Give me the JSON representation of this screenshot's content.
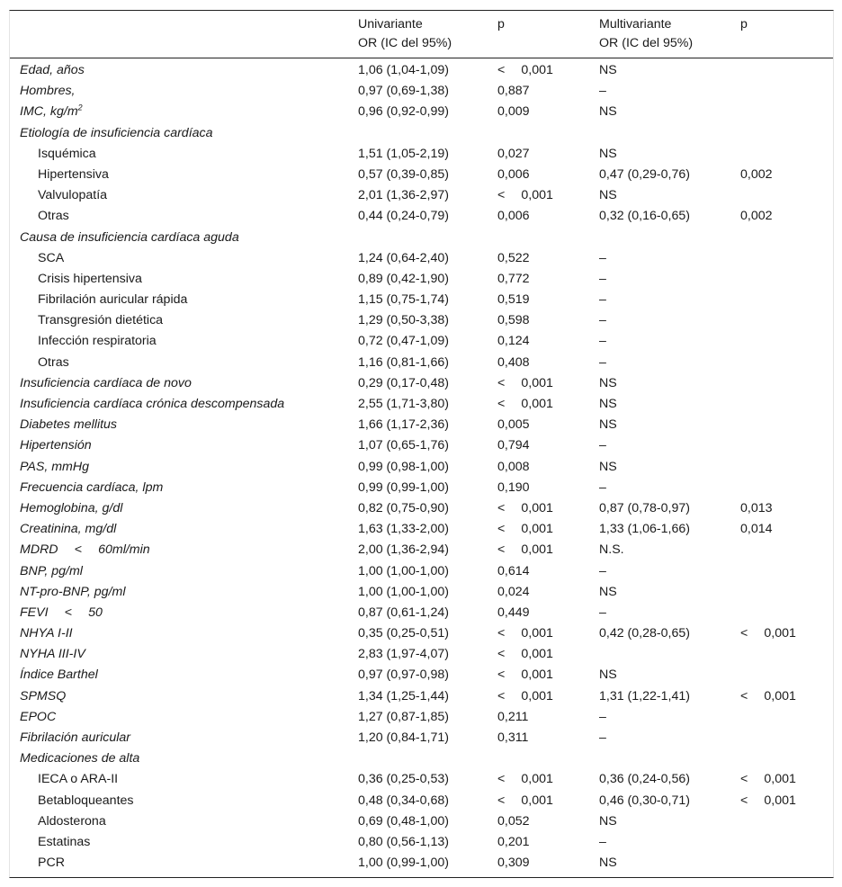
{
  "header": {
    "univ_line1": "Univariante",
    "univ_line2": "OR (IC del 95%)",
    "p1": "p",
    "multi_line1": "Multivariante",
    "multi_line2": "OR (IC del 95%)",
    "p2": "p"
  },
  "rows": [
    {
      "label": "Edad, años",
      "italic": true,
      "indent": false,
      "univ": "1,06 (1,04-1,09)",
      "p": "<  0,001",
      "multi": "NS",
      "p2": ""
    },
    {
      "label": "Hombres,",
      "italic": true,
      "indent": false,
      "univ": "0,97 (0,69-1,38)",
      "p": "0,887",
      "multi": "–",
      "p2": ""
    },
    {
      "label": "IMC, kg/m",
      "sup": "2",
      "italic": true,
      "indent": false,
      "univ": "0,96 (0,92-0,99)",
      "p": "0,009",
      "multi": "NS",
      "p2": ""
    },
    {
      "label": "Etiología de insuficiencia cardíaca",
      "italic": true,
      "indent": false,
      "univ": "",
      "p": "",
      "multi": "",
      "p2": ""
    },
    {
      "label": "Isquémica",
      "italic": false,
      "indent": true,
      "univ": "1,51 (1,05-2,19)",
      "p": "0,027",
      "multi": "NS",
      "p2": ""
    },
    {
      "label": "Hipertensiva",
      "italic": false,
      "indent": true,
      "univ": "0,57 (0,39-0,85)",
      "p": "0,006",
      "multi": "0,47 (0,29-0,76)",
      "p2": "0,002"
    },
    {
      "label": "Valvulopatía",
      "italic": false,
      "indent": true,
      "univ": "2,01 (1,36-2,97)",
      "p": "<  0,001",
      "multi": "NS",
      "p2": ""
    },
    {
      "label": "Otras",
      "italic": false,
      "indent": true,
      "univ": "0,44 (0,24-0,79)",
      "p": "0,006",
      "multi": "0,32 (0,16-0,65)",
      "p2": "0,002"
    },
    {
      "label": "Causa de insuficiencia cardíaca aguda",
      "italic": true,
      "indent": false,
      "univ": "",
      "p": "",
      "multi": "",
      "p2": ""
    },
    {
      "label": "SCA",
      "italic": false,
      "indent": true,
      "univ": "1,24 (0,64-2,40)",
      "p": "0,522",
      "multi": "–",
      "p2": ""
    },
    {
      "label": "Crisis hipertensiva",
      "italic": false,
      "indent": true,
      "univ": "0,89 (0,42-1,90)",
      "p": "0,772",
      "multi": "–",
      "p2": ""
    },
    {
      "label": "Fibrilación auricular rápida",
      "italic": false,
      "indent": true,
      "univ": "1,15 (0,75-1,74)",
      "p": "0,519",
      "multi": "–",
      "p2": ""
    },
    {
      "label": "Transgresión dietética",
      "italic": false,
      "indent": true,
      "univ": "1,29 (0,50-3,38)",
      "p": "0,598",
      "multi": "–",
      "p2": ""
    },
    {
      "label": "Infección respiratoria",
      "italic": false,
      "indent": true,
      "univ": "0,72 (0,47-1,09)",
      "p": "0,124",
      "multi": "–",
      "p2": ""
    },
    {
      "label": "Otras",
      "italic": false,
      "indent": true,
      "univ": "1,16 (0,81-1,66)",
      "p": "0,408",
      "multi": "–",
      "p2": ""
    },
    {
      "label": "Insuficiencia cardíaca de novo",
      "italic": true,
      "indent": false,
      "univ": "0,29 (0,17-0,48)",
      "p": "<  0,001",
      "multi": "NS",
      "p2": ""
    },
    {
      "label": "Insuficiencia cardíaca crónica descompensada",
      "italic": true,
      "indent": false,
      "univ": "2,55 (1,71-3,80)",
      "p": "<  0,001",
      "multi": "NS",
      "p2": ""
    },
    {
      "label": "Diabetes mellitus",
      "italic": true,
      "indent": false,
      "univ": "1,66 (1,17-2,36)",
      "p": "0,005",
      "multi": "NS",
      "p2": ""
    },
    {
      "label": "Hipertensión",
      "italic": true,
      "indent": false,
      "univ": "1,07 (0,65-1,76)",
      "p": "0,794",
      "multi": "–",
      "p2": ""
    },
    {
      "label": "PAS, mmHg",
      "italic": true,
      "indent": false,
      "univ": "0,99 (0,98-1,00)",
      "p": "0,008",
      "multi": "NS",
      "p2": ""
    },
    {
      "label": "Frecuencia cardíaca, lpm",
      "italic": true,
      "indent": false,
      "univ": "0,99 (0,99-1,00)",
      "p": "0,190",
      "multi": "–",
      "p2": ""
    },
    {
      "label": "Hemoglobina, g/dl",
      "italic": true,
      "indent": false,
      "univ": "0,82 (0,75-0,90)",
      "p": "<  0,001",
      "multi": "0,87 (0,78-0,97)",
      "p2": "0,013"
    },
    {
      "label": "Creatinina, mg/dl",
      "italic": true,
      "indent": false,
      "univ": "1,63 (1,33-2,00)",
      "p": "<  0,001",
      "multi": "1,33 (1,06-1,66)",
      "p2": "0,014"
    },
    {
      "label": "MDRD  <  60ml/min",
      "italic": true,
      "indent": false,
      "univ": "2,00 (1,36-2,94)",
      "p": "<  0,001",
      "multi": "N.S.",
      "p2": ""
    },
    {
      "label": "BNP, pg/ml",
      "italic": true,
      "indent": false,
      "univ": "1,00 (1,00-1,00)",
      "p": "0,614",
      "multi": "–",
      "p2": ""
    },
    {
      "label": "NT-pro-BNP, pg/ml",
      "italic": true,
      "indent": false,
      "univ": "1,00 (1,00-1,00)",
      "p": "0,024",
      "multi": "NS",
      "p2": ""
    },
    {
      "label": "FEVI  <  50",
      "italic": true,
      "indent": false,
      "univ": "0,87 (0,61-1,24)",
      "p": "0,449",
      "multi": "–",
      "p2": ""
    },
    {
      "label": "NHYA I-II",
      "italic": true,
      "indent": false,
      "univ": "0,35 (0,25-0,51)",
      "p": "<  0,001",
      "multi": "0,42 (0,28-0,65)",
      "p2": "<  0,001"
    },
    {
      "label": "NYHA III-IV",
      "italic": true,
      "indent": false,
      "univ": "2,83 (1,97-4,07)",
      "p": "<  0,001",
      "multi": "",
      "p2": ""
    },
    {
      "label": "Índice Barthel",
      "italic": true,
      "indent": false,
      "univ": "0,97 (0,97-0,98)",
      "p": "<  0,001",
      "multi": "NS",
      "p2": ""
    },
    {
      "label": "SPMSQ",
      "italic": true,
      "indent": false,
      "univ": "1,34 (1,25-1,44)",
      "p": "<  0,001",
      "multi": "1,31 (1,22-1,41)",
      "p2": "<  0,001"
    },
    {
      "label": "EPOC",
      "italic": true,
      "indent": false,
      "univ": "1,27 (0,87-1,85)",
      "p": "0,211",
      "multi": "–",
      "p2": ""
    },
    {
      "label": "Fibrilación auricular",
      "italic": true,
      "indent": false,
      "univ": "1,20 (0,84-1,71)",
      "p": "0,311",
      "multi": "–",
      "p2": ""
    },
    {
      "label": "Medicaciones de alta",
      "italic": true,
      "indent": false,
      "univ": "",
      "p": "",
      "multi": "",
      "p2": ""
    },
    {
      "label": "IECA o ARA-II",
      "italic": false,
      "indent": true,
      "univ": "0,36 (0,25-0,53)",
      "p": "<  0,001",
      "multi": "0,36 (0,24-0,56)",
      "p2": "<  0,001"
    },
    {
      "label": "Betabloqueantes",
      "italic": false,
      "indent": true,
      "univ": "0,48 (0,34-0,68)",
      "p": "<  0,001",
      "multi": "0,46 (0,30-0,71)",
      "p2": "<  0,001"
    },
    {
      "label": "Aldosterona",
      "italic": false,
      "indent": true,
      "univ": "0,69 (0,48-1,00)",
      "p": "0,052",
      "multi": "NS",
      "p2": ""
    },
    {
      "label": "Estatinas",
      "italic": false,
      "indent": true,
      "univ": "0,80 (0,56-1,13)",
      "p": "0,201",
      "multi": "–",
      "p2": ""
    },
    {
      "label": "PCR",
      "italic": false,
      "indent": true,
      "univ": "1,00 (0,99-1,00)",
      "p": "0,309",
      "multi": "NS",
      "p2": ""
    }
  ]
}
